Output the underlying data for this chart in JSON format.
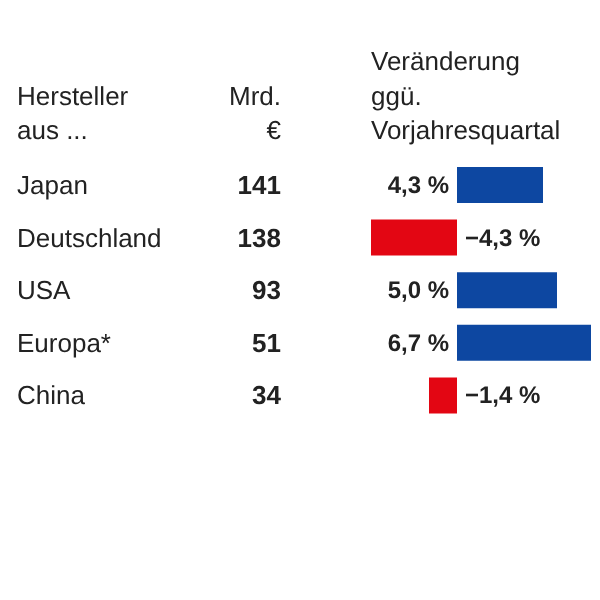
{
  "chart_data": [
    {
      "type": "other",
      "title": "Mrd. €",
      "values": [
        141,
        138,
        93,
        51,
        34
      ],
      "data_labels": true
    },
    {
      "type": "bar",
      "orientation": "horizontal",
      "title": "Veränderung ggü. Vorjahresquartal",
      "ylabel": "Hersteller aus ...",
      "categories": [
        "Japan",
        "Deutschland",
        "USA",
        "Europa*",
        "China"
      ],
      "values": [
        4.3,
        -4.3,
        5.0,
        6.7,
        -1.4
      ],
      "colors": [
        "#0d47a1",
        "#e30613",
        "#0d47a1",
        "#0d47a1",
        "#e30613"
      ],
      "value_labels": [
        "4,3 %",
        "−4,3 %",
        "5,0 %",
        "6,7 %",
        "−1,4 %"
      ]
    }
  ]
}
